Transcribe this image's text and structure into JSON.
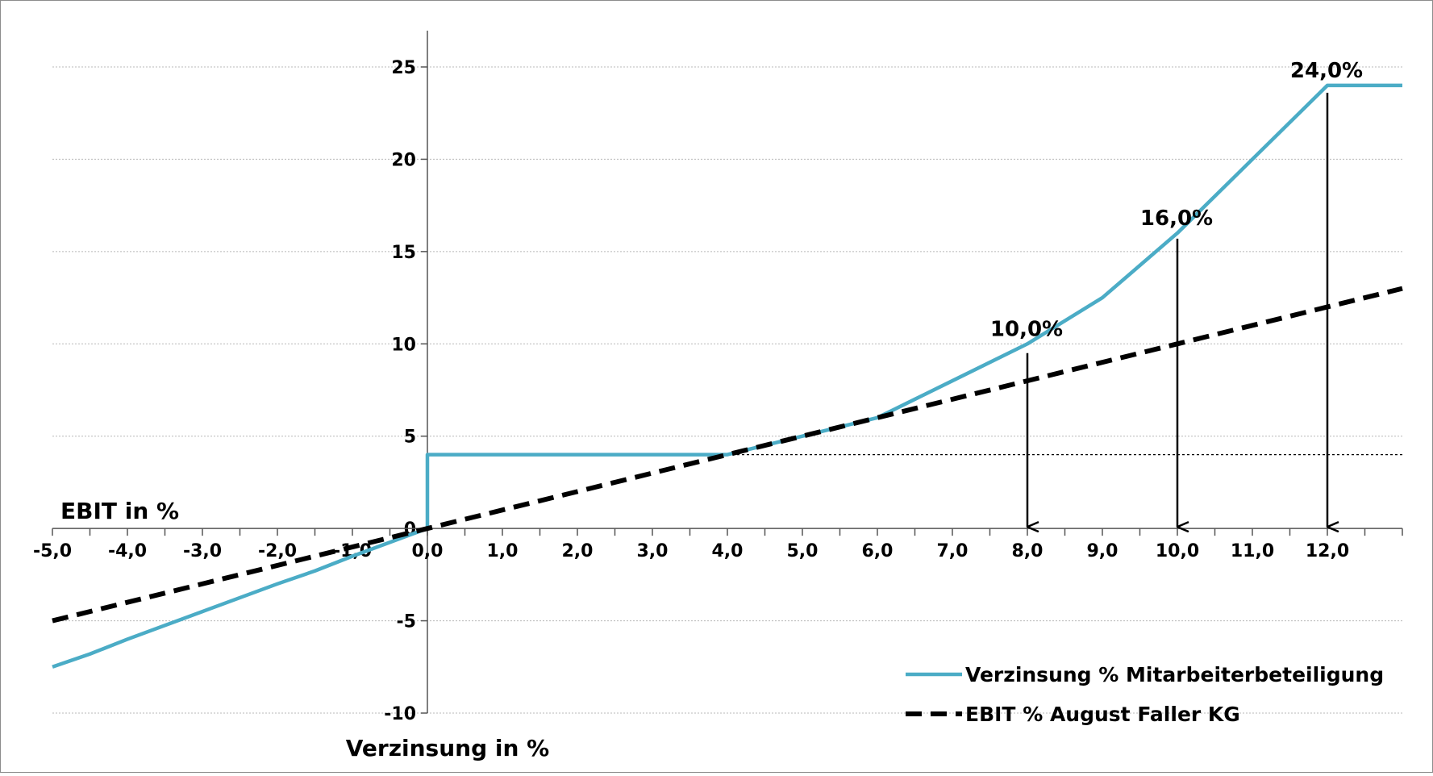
{
  "chart_data": {
    "type": "line",
    "xlabel": "Verzinsung in %",
    "ylabel": "EBIT in %",
    "xlim": [
      -5,
      13
    ],
    "ylim": [
      -10,
      25
    ],
    "x_ticks": [
      -5,
      -4,
      -3,
      -2,
      -1,
      0,
      1,
      2,
      3,
      4,
      5,
      6,
      7,
      8,
      9,
      10,
      11,
      12
    ],
    "x_tick_labels": [
      "-5,0",
      "-4,0",
      "-3,0",
      "-2,0",
      "-1,0",
      "0,0",
      "1,0",
      "2,0",
      "3,0",
      "4,0",
      "5,0",
      "6,0",
      "7,0",
      "8,0",
      "9,0",
      "10,0",
      "11,0",
      "12,0"
    ],
    "y_ticks": [
      -10,
      -5,
      0,
      5,
      10,
      15,
      20,
      25
    ],
    "y_tick_labels": [
      "-10",
      "-5",
      "0",
      "5",
      "10",
      "15",
      "20",
      "25"
    ],
    "grid": "horizontal dotted",
    "legend_position": "bottom-right",
    "series": [
      {
        "name": "Verzinsung % Mitarbeiterbeteiligung",
        "color": "#4BACC6",
        "style": "solid",
        "points": [
          [
            -5,
            -7.5
          ],
          [
            -4.5,
            -6.8
          ],
          [
            -4,
            -6
          ],
          [
            -3,
            -4.5
          ],
          [
            -2,
            -3
          ],
          [
            -1.5,
            -2.3
          ],
          [
            -1,
            -1.5
          ],
          [
            0,
            0
          ],
          [
            0,
            4
          ],
          [
            4,
            4
          ],
          [
            5,
            5
          ],
          [
            6,
            6
          ],
          [
            6.5,
            7
          ],
          [
            7,
            8
          ],
          [
            8,
            10
          ],
          [
            9,
            12.5
          ],
          [
            10,
            16
          ],
          [
            11,
            20
          ],
          [
            12,
            24
          ],
          [
            13,
            24
          ]
        ]
      },
      {
        "name": "EBIT % August Faller KG",
        "color": "#000000",
        "style": "dashed",
        "points": [
          [
            -5,
            -5
          ],
          [
            13,
            13
          ]
        ]
      }
    ],
    "reference_line": {
      "y": 4,
      "style": "dotted",
      "color": "#000000"
    },
    "annotations": [
      {
        "text": "10,0%",
        "x": 8,
        "y": 10,
        "arrow_from_y": 9.5,
        "arrow_to_y": 0
      },
      {
        "text": "16,0%",
        "x": 10,
        "y": 16,
        "arrow_from_y": 15.7,
        "arrow_to_y": 0
      },
      {
        "text": "24,0%",
        "x": 12,
        "y": 24,
        "arrow_from_y": 23.6,
        "arrow_to_y": 0
      }
    ]
  }
}
